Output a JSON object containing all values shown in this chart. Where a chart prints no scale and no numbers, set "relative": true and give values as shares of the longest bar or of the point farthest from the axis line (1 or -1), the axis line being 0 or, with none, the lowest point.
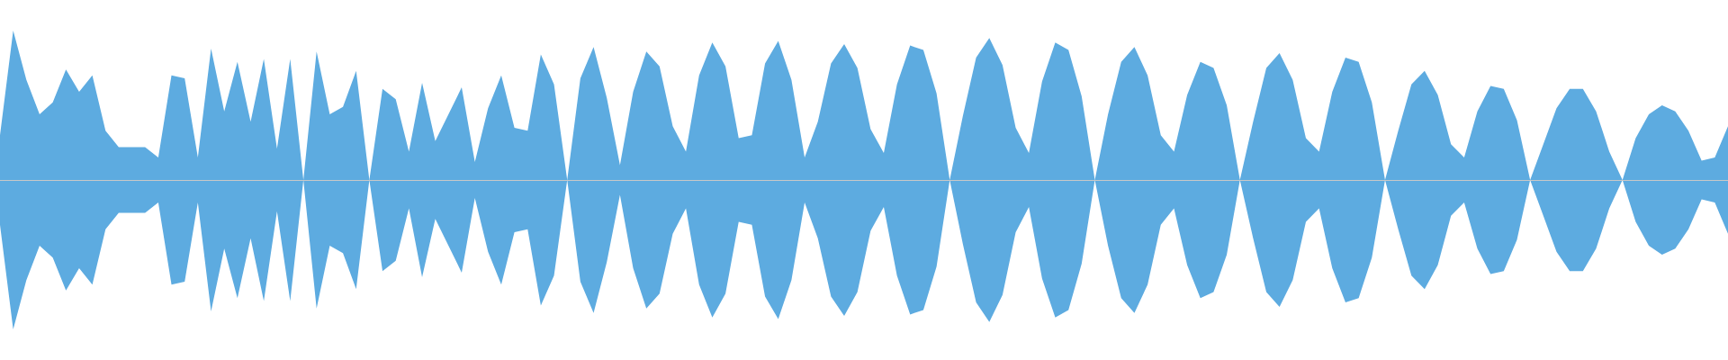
{
  "chart_data": {
    "type": "area",
    "relative": true,
    "categories": [
      null,
      null,
      null,
      null,
      null,
      null,
      null,
      null,
      null,
      null,
      null,
      null,
      null,
      null,
      null,
      null,
      null,
      null,
      null,
      null,
      null,
      null,
      null,
      null,
      null,
      null,
      null,
      null,
      null,
      null,
      null,
      null,
      null,
      null,
      null,
      null,
      null,
      null,
      null,
      null,
      null,
      null,
      null,
      null,
      null,
      null,
      null,
      null,
      null,
      null,
      null,
      null,
      null,
      null,
      null,
      null,
      null,
      null,
      null,
      null,
      null,
      null,
      null,
      null,
      null,
      null,
      null,
      null,
      null,
      null,
      null,
      null,
      null,
      null,
      null,
      null,
      null,
      null,
      null,
      null,
      null,
      null,
      null,
      null,
      null,
      null,
      null,
      null,
      null,
      null,
      null,
      null,
      null,
      null,
      null,
      null,
      null,
      null,
      null,
      null,
      null,
      null,
      null,
      null,
      null,
      null,
      null,
      null,
      null,
      null,
      null,
      null,
      null,
      null,
      null,
      null,
      null,
      null,
      null,
      null,
      null,
      null,
      null,
      null,
      null,
      null,
      null,
      null,
      null,
      null,
      null,
      null
    ],
    "series": [
      {
        "color": "#5dabe0",
        "values": [
          0.3,
          1.0,
          0.67,
          0.44,
          0.52,
          0.74,
          0.59,
          0.7,
          0.33,
          0.22,
          0.22,
          0.22,
          0.15,
          0.7,
          0.68,
          0.15,
          0.88,
          0.46,
          0.79,
          0.39,
          0.81,
          0.21,
          0.81,
          0,
          0.86,
          0.44,
          0.49,
          0.73,
          0,
          0.61,
          0.54,
          0.19,
          0.65,
          0.26,
          0.44,
          0.62,
          0.12,
          0.48,
          0.7,
          0.35,
          0.33,
          0.84,
          0.64,
          0,
          0.68,
          0.89,
          0.55,
          0.1,
          0.59,
          0.86,
          0.76,
          0.36,
          0.19,
          0.7,
          0.92,
          0.76,
          0.28,
          0.3,
          0.78,
          0.93,
          0.67,
          0.15,
          0.39,
          0.78,
          0.91,
          0.75,
          0.34,
          0.18,
          0.64,
          0.9,
          0.87,
          0.58,
          0,
          0.43,
          0.82,
          0.95,
          0.77,
          0.35,
          0.18,
          0.66,
          0.92,
          0.87,
          0.56,
          0,
          0.44,
          0.79,
          0.89,
          0.7,
          0.3,
          0.19,
          0.57,
          0.79,
          0.75,
          0.5,
          0,
          0.39,
          0.75,
          0.85,
          0.67,
          0.28,
          0.19,
          0.59,
          0.82,
          0.79,
          0.52,
          0,
          0.33,
          0.64,
          0.73,
          0.57,
          0.24,
          0.15,
          0.46,
          0.63,
          0.61,
          0.4,
          0,
          0.24,
          0.48,
          0.61,
          0.61,
          0.46,
          0.19,
          0,
          0.28,
          0.44,
          0.5,
          0.46,
          0.33,
          0.13,
          0.15,
          0.36
        ]
      },
      {
        "color": "#5dabe0",
        "values": [
          -0.3,
          -1.0,
          -0.67,
          -0.44,
          -0.52,
          -0.74,
          -0.59,
          -0.7,
          -0.33,
          -0.22,
          -0.22,
          -0.22,
          -0.15,
          -0.7,
          -0.68,
          -0.15,
          -0.88,
          -0.46,
          -0.79,
          -0.39,
          -0.81,
          -0.21,
          -0.81,
          0,
          -0.86,
          -0.44,
          -0.49,
          -0.73,
          0,
          -0.61,
          -0.54,
          -0.19,
          -0.65,
          -0.26,
          -0.44,
          -0.62,
          -0.12,
          -0.48,
          -0.7,
          -0.35,
          -0.33,
          -0.84,
          -0.64,
          0,
          -0.68,
          -0.89,
          -0.55,
          -0.1,
          -0.59,
          -0.86,
          -0.76,
          -0.36,
          -0.19,
          -0.7,
          -0.92,
          -0.76,
          -0.28,
          -0.3,
          -0.78,
          -0.93,
          -0.67,
          -0.15,
          -0.39,
          -0.78,
          -0.91,
          -0.75,
          -0.34,
          -0.18,
          -0.64,
          -0.9,
          -0.87,
          -0.58,
          0,
          -0.43,
          -0.82,
          -0.95,
          -0.77,
          -0.35,
          -0.18,
          -0.66,
          -0.92,
          -0.87,
          -0.56,
          0,
          -0.44,
          -0.79,
          -0.89,
          -0.7,
          -0.3,
          -0.19,
          -0.57,
          -0.79,
          -0.75,
          -0.5,
          0,
          -0.39,
          -0.75,
          -0.85,
          -0.67,
          -0.28,
          -0.19,
          -0.59,
          -0.82,
          -0.79,
          -0.52,
          0,
          -0.33,
          -0.64,
          -0.73,
          -0.57,
          -0.24,
          -0.15,
          -0.46,
          -0.63,
          -0.61,
          -0.4,
          0,
          -0.24,
          -0.48,
          -0.61,
          -0.61,
          -0.46,
          -0.19,
          0,
          -0.28,
          -0.44,
          -0.5,
          -0.46,
          -0.33,
          -0.13,
          -0.15,
          -0.36
        ]
      }
    ]
  }
}
